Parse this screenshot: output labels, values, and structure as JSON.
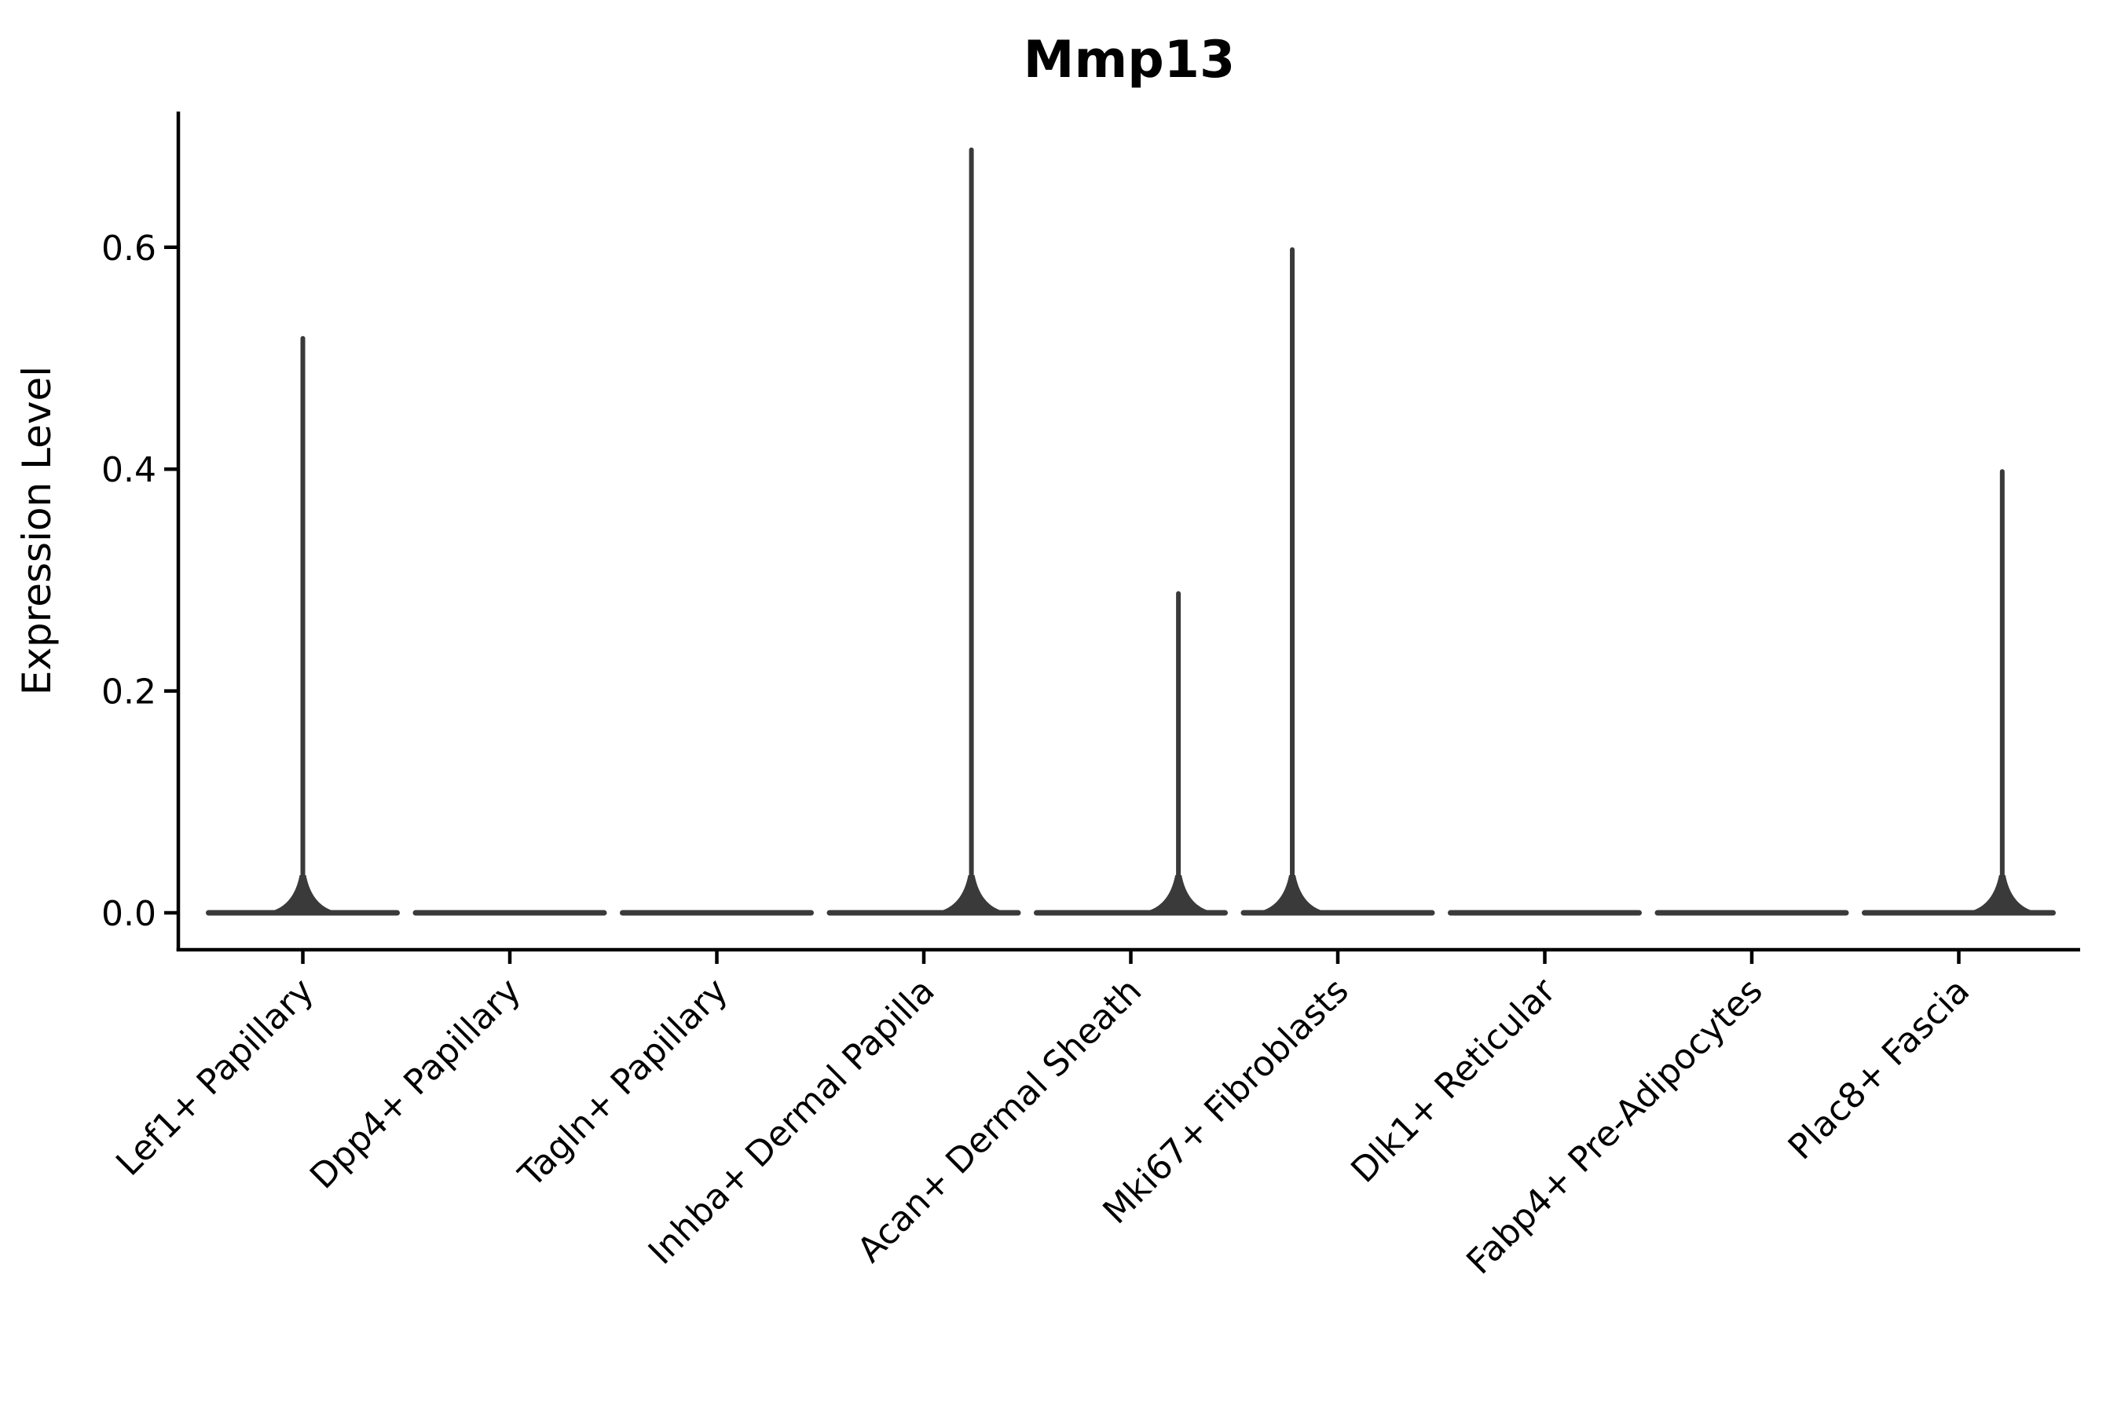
{
  "figure": {
    "title": "Mmp13",
    "ylabel": "Expression Level",
    "xlabel": ""
  },
  "chart_data": {
    "type": "violin",
    "title": "Mmp13",
    "ylabel": "Expression Level",
    "xlabel": "",
    "categories": [
      "Lef1+ Papillary",
      "Dpp4+ Papillary",
      "Tagln+ Papillary",
      "Inhba+ Dermal Papilla",
      "Acan+ Dermal Sheath",
      "Mki67+ Fibroblasts",
      "Dlk1+ Reticular",
      "Fabp4+ Pre-Adipocytes",
      "Plac8+ Fascia"
    ],
    "series": [
      {
        "category": "Lef1+ Papillary",
        "bulk_at_zero": true,
        "has_spike": true,
        "max_expression": 0.52,
        "spike_x_offset": 0.0
      },
      {
        "category": "Dpp4+ Papillary",
        "bulk_at_zero": true,
        "has_spike": false,
        "max_expression": 0.0,
        "spike_x_offset": 0
      },
      {
        "category": "Tagln+ Papillary",
        "bulk_at_zero": true,
        "has_spike": false,
        "max_expression": 0.0,
        "spike_x_offset": 0
      },
      {
        "category": "Inhba+ Dermal Papilla",
        "bulk_at_zero": true,
        "has_spike": true,
        "max_expression": 0.69,
        "spike_x_offset": 0.23
      },
      {
        "category": "Acan+ Dermal Sheath",
        "bulk_at_zero": true,
        "has_spike": true,
        "max_expression": 0.29,
        "spike_x_offset": 0.23
      },
      {
        "category": "Mki67+ Fibroblasts",
        "bulk_at_zero": true,
        "has_spike": true,
        "max_expression": 0.6,
        "spike_x_offset": -0.22
      },
      {
        "category": "Dlk1+ Reticular",
        "bulk_at_zero": true,
        "has_spike": false,
        "max_expression": 0.0,
        "spike_x_offset": 0
      },
      {
        "category": "Fabp4+ Pre-Adipocytes",
        "bulk_at_zero": true,
        "has_spike": false,
        "max_expression": 0.0,
        "spike_x_offset": 0
      },
      {
        "category": "Plac8+ Fascia",
        "bulk_at_zero": true,
        "has_spike": true,
        "max_expression": 0.4,
        "spike_x_offset": 0.21
      }
    ],
    "ytick_labels": [
      "0.0",
      "0.2",
      "0.4",
      "0.6"
    ],
    "ytick_values": [
      0.0,
      0.2,
      0.4,
      0.6
    ],
    "ylim": [
      -0.03,
      0.72
    ],
    "xtick_rotation_deg": 45,
    "grid": false,
    "legend": "none",
    "spines": [
      "left",
      "bottom"
    ],
    "colors": {
      "violin_outline": "#3a3a3a",
      "axis": "#000000",
      "text": "#000000",
      "background": "#ffffff"
    }
  }
}
